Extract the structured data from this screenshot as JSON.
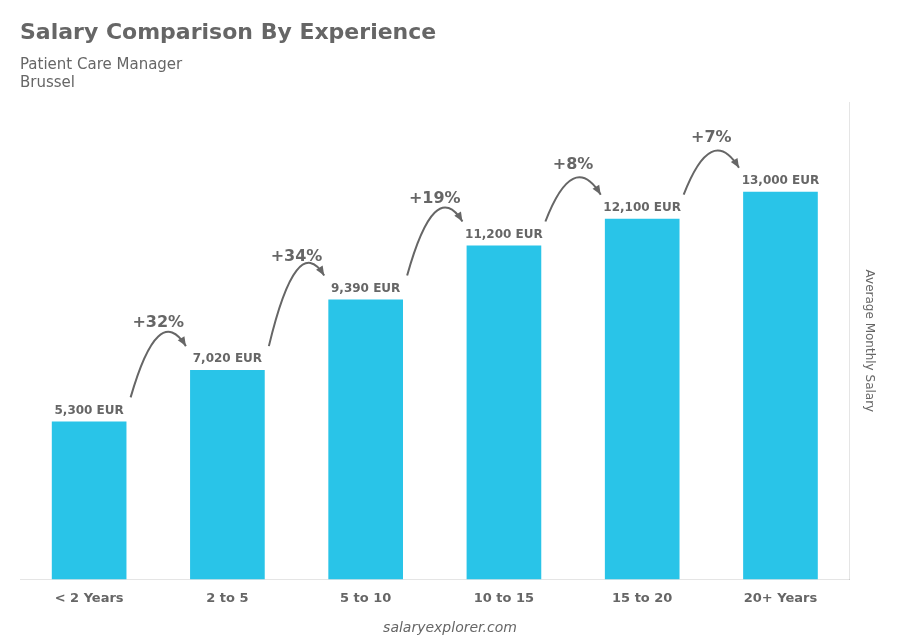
{
  "chart_data": {
    "type": "bar",
    "title": "Salary Comparison By Experience",
    "subtitle": [
      "Patient Care Manager",
      "Brussel"
    ],
    "categories": [
      "< 2 Years",
      "2 to 5",
      "5 to 10",
      "10 to 15",
      "15 to 20",
      "20+ Years"
    ],
    "values": [
      5300,
      7020,
      9390,
      11200,
      12100,
      13000
    ],
    "value_labels": [
      "5,300 EUR",
      "7,020 EUR",
      "9,390 EUR",
      "11,200 EUR",
      "12,100 EUR",
      "13,000 EUR"
    ],
    "data_labels": true,
    "color": "#29c4e8",
    "ylabel": "Average Monthly Salary",
    "ylim": [
      0,
      16000
    ],
    "grid": false,
    "tick_labels": "x",
    "annotations": [
      {
        "text": "+32%",
        "from": "< 2 Years",
        "to": "2 to 5"
      },
      {
        "text": "+34%",
        "from": "2 to 5",
        "to": "5 to 10"
      },
      {
        "text": "+19%",
        "from": "5 to 10",
        "to": "10 to 15"
      },
      {
        "text": "+8%",
        "from": "10 to 15",
        "to": "15 to 20"
      },
      {
        "text": "+7%",
        "from": "15 to 20",
        "to": "20+ Years"
      },
      {
        "text": "salaryexplorer.com"
      }
    ]
  }
}
